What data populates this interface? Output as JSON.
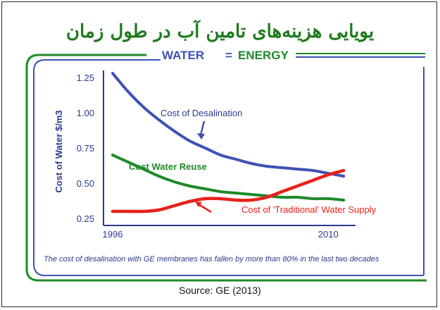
{
  "page": {
    "title_fa": "یویایی هزینه‌های تامین آب در طول زمان",
    "banner": {
      "word1": "WATER",
      "separator": "=",
      "word2": "ENERGY"
    },
    "footnote": "The cost of desalination with GE membranes has fallen by more than 80% in the last two decades",
    "source": "Source: GE (2013)",
    "colors": {
      "green": "#1f8a2a",
      "blue": "#3f51b5",
      "red": "#e8211b",
      "title_green": "#1f7a1f",
      "dark_blue": "#2a3a8f"
    }
  },
  "chart_data": {
    "type": "line",
    "title": "",
    "xlabel": "",
    "ylabel": "Cost of Water $/m3",
    "xlim": [
      1996,
      2012
    ],
    "ylim": [
      0.2,
      1.3
    ],
    "x_ticks": [
      1996,
      2010
    ],
    "y_ticks": [
      0.25,
      0.5,
      0.75,
      1.0,
      1.25
    ],
    "y_tick_labels": [
      "0.25",
      "0.50",
      "0.75",
      "1.00",
      "1.25"
    ],
    "series": [
      {
        "name": "Cost of Desalination",
        "color": "#3f51b5",
        "x": [
          1996,
          1997,
          1998,
          1999,
          2000,
          2001,
          2002,
          2003,
          2004,
          2005,
          2006,
          2007,
          2008,
          2009,
          2010,
          2011
        ],
        "y": [
          1.28,
          1.15,
          1.04,
          0.95,
          0.87,
          0.8,
          0.75,
          0.7,
          0.67,
          0.64,
          0.62,
          0.61,
          0.6,
          0.59,
          0.57,
          0.55
        ]
      },
      {
        "name": "Cost Water Reuse",
        "color": "#1f8a2a",
        "x": [
          1996,
          1997,
          1998,
          1999,
          2000,
          2001,
          2002,
          2003,
          2004,
          2005,
          2006,
          2007,
          2008,
          2009,
          2010,
          2011
        ],
        "y": [
          0.7,
          0.65,
          0.6,
          0.55,
          0.51,
          0.48,
          0.46,
          0.44,
          0.43,
          0.42,
          0.41,
          0.4,
          0.4,
          0.39,
          0.39,
          0.38
        ]
      },
      {
        "name": "Cost of 'Traditional' Water Supply",
        "color": "#e8211b",
        "x": [
          1996,
          1997,
          1998,
          1999,
          2000,
          2001,
          2002,
          2003,
          2004,
          2005,
          2006,
          2007,
          2008,
          2009,
          2010,
          2011
        ],
        "y": [
          0.3,
          0.3,
          0.3,
          0.31,
          0.34,
          0.37,
          0.39,
          0.39,
          0.38,
          0.38,
          0.4,
          0.44,
          0.48,
          0.52,
          0.56,
          0.59
        ]
      }
    ]
  }
}
